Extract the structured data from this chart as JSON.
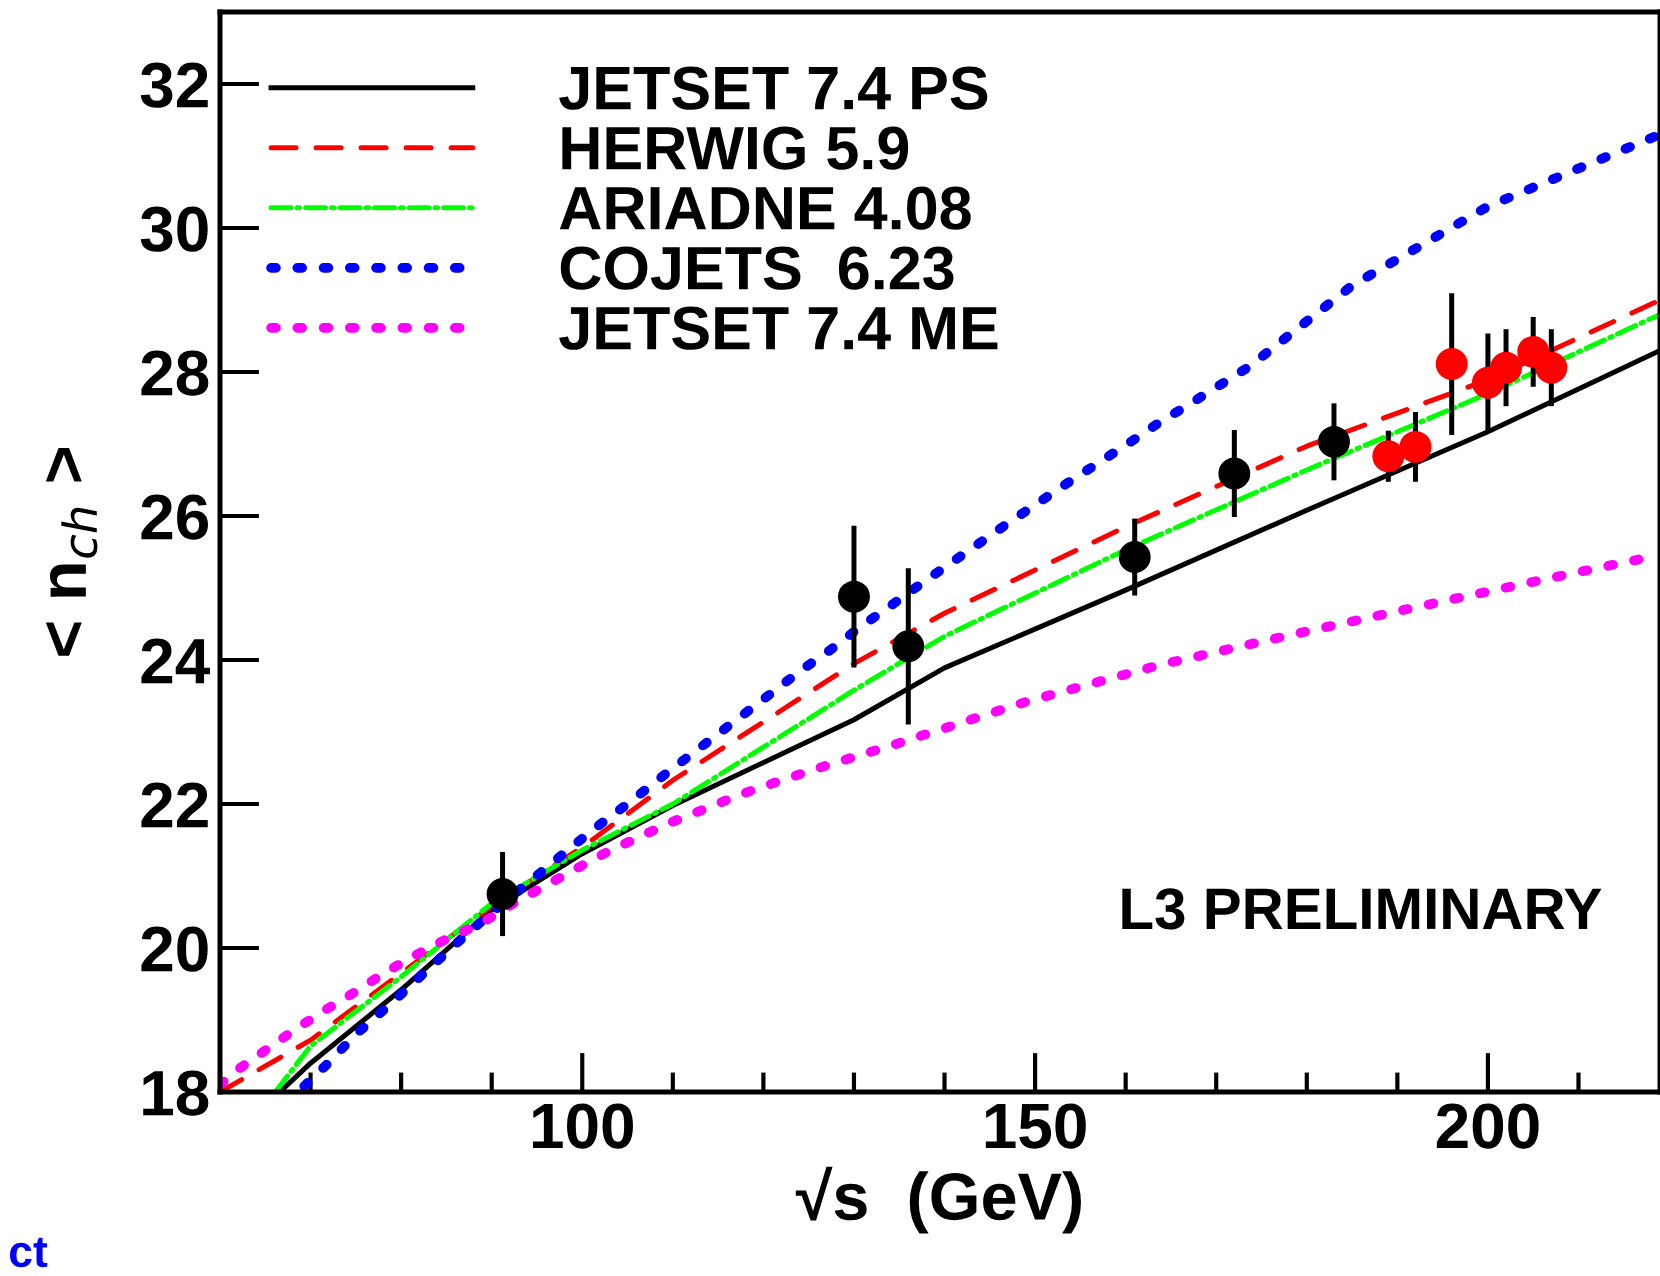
{
  "chart_data": {
    "type": "line",
    "xlabel": "√s  (GeV)",
    "ylabel": "< n$_{ch}$ >",
    "xlim": [
      60,
      219
    ],
    "ylim": [
      18,
      33
    ],
    "xticks": [
      100,
      150,
      200
    ],
    "yticks": [
      18,
      20,
      22,
      24,
      26,
      28,
      30,
      32
    ],
    "legend": "top left",
    "grid": false,
    "annotations": [
      "L3 PRELIMINARY",
      "ct"
    ],
    "series": [
      {
        "name": "JETSET 7.4 PS",
        "color": "#000000",
        "line_style": "solid",
        "x": [
          66.6,
          70,
          80,
          90,
          100,
          110,
          130,
          140,
          160,
          180,
          200,
          219
        ],
        "values": [
          18,
          18.4,
          19.42,
          20.53,
          21.31,
          21.98,
          23.17,
          23.89,
          24.97,
          26.08,
          27.17,
          28.3
        ]
      },
      {
        "name": "HERWIG 5.9",
        "color": "#ff0000",
        "line_style": "dashed",
        "x": [
          60,
          70,
          80,
          90,
          100,
          110,
          130,
          140,
          160,
          180,
          200,
          219
        ],
        "values": [
          18,
          18.72,
          19.65,
          20.58,
          21.4,
          22.33,
          23.95,
          24.65,
          25.85,
          26.97,
          27.89,
          29.0
        ]
      },
      {
        "name": "ARIADNE 4.08",
        "color": "#00ff00",
        "line_style": "dashdot",
        "x": [
          66.1,
          70,
          80,
          90,
          100,
          110,
          130,
          140,
          160,
          180,
          200,
          219
        ],
        "values": [
          18,
          18.64,
          19.6,
          20.62,
          21.36,
          22.0,
          23.58,
          24.33,
          25.53,
          26.64,
          27.7,
          28.8
        ]
      },
      {
        "name": "COJETS  6.23",
        "color": "#0000ff",
        "line_style": "dotted",
        "x": [
          69.3,
          72.1,
          74.9,
          77.9,
          80.8,
          83.8,
          86.7,
          89.6,
          92.8,
          95.8,
          99,
          102,
          105.3,
          108.3,
          121.1,
          124.2,
          127.5,
          130.6,
          133.9,
          137.2,
          140.5,
          143.7,
          147,
          150.3,
          153.6,
          156.9,
          160.2,
          163.5,
          167,
          170.3,
          173.7,
          185,
          200,
          219
        ],
        "values": [
          18.08,
          18.42,
          18.79,
          19.12,
          19.45,
          19.8,
          20.13,
          20.45,
          20.78,
          21.09,
          21.42,
          21.72,
          22.03,
          22.33,
          23.56,
          23.86,
          24.15,
          24.45,
          24.74,
          25.04,
          25.33,
          25.61,
          25.9,
          26.18,
          26.46,
          26.73,
          27.0,
          27.28,
          27.55,
          27.81,
          28.08,
          29.2,
          30.3,
          31.3
        ]
      },
      {
        "name": "JETSET 7.4 ME",
        "color": "#ff00ff",
        "line_style": "dotted",
        "x": [
          60,
          61.6,
          64.9,
          68.2,
          71.5,
          74.8,
          78.1,
          81.4,
          85.1,
          88.8,
          92.4,
          95.7,
          99,
          102.7,
          106.4,
          110.1,
          113.7,
          117.4,
          121.1,
          126.6,
          134.3,
          149,
          163.7,
          178.3,
          193,
          207.7,
          218.3
        ],
        "values": [
          18.1,
          18.28,
          18.57,
          18.86,
          19.13,
          19.38,
          19.65,
          19.89,
          20.13,
          20.34,
          20.62,
          20.85,
          21.08,
          21.33,
          21.55,
          21.76,
          21.94,
          22.13,
          22.29,
          22.52,
          22.82,
          23.42,
          23.93,
          24.35,
          24.76,
          25.16,
          25.44
        ]
      },
      {
        "type": "scatter",
        "color": "#000000",
        "marker": "circle",
        "x": [
          91.2,
          130,
          136,
          161,
          172,
          183
        ],
        "values": [
          20.75,
          24.88,
          24.19,
          25.43,
          26.59,
          27.03
        ],
        "errors": [
          0.55,
          0.95,
          1.05,
          0.5,
          0.57,
          0.5
        ]
      },
      {
        "type": "scatter",
        "color": "#ff0000",
        "marker": "circle",
        "x": [
          189,
          192,
          196,
          200,
          202,
          205,
          207
        ],
        "values": [
          26.83,
          26.96,
          28.11,
          27.85,
          28.06,
          28.28,
          28.06
        ],
        "errors": [
          0.32,
          0.45,
          0.95,
          0.65,
          0.5,
          0.45,
          0.5
        ]
      }
    ]
  }
}
